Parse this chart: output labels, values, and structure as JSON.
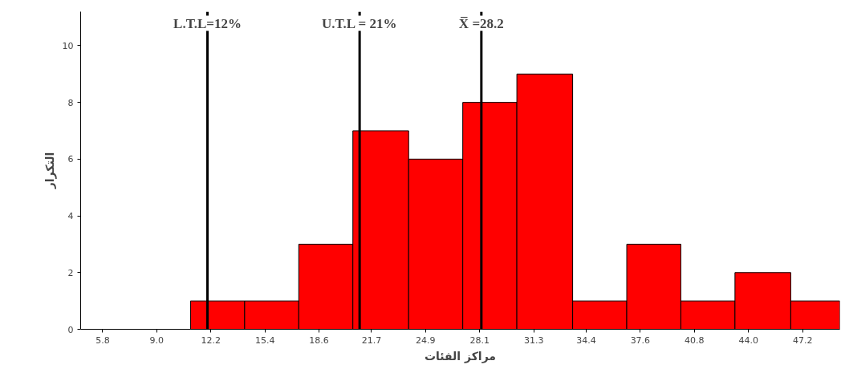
{
  "chart_data": {
    "type": "histogram",
    "xlabel": "مراكز الفئات",
    "ylabel": "التكرار",
    "bins": [
      11.0,
      14.2,
      17.4,
      20.6,
      23.9,
      27.1,
      30.3,
      33.6,
      36.8,
      40.0,
      43.2,
      46.5,
      49.4
    ],
    "values": [
      1,
      1,
      3,
      7,
      6,
      8,
      9,
      1,
      3,
      1,
      2,
      1
    ],
    "color": "#ff0000",
    "xlim": [
      4.5,
      49.4
    ],
    "xticks": [
      {
        "value": 5.8,
        "label": "5.8"
      },
      {
        "value": 9.0,
        "label": "9.0"
      },
      {
        "value": 12.2,
        "label": "12.2"
      },
      {
        "value": 15.4,
        "label": "15.4"
      },
      {
        "value": 18.6,
        "label": "18.6"
      },
      {
        "value": 21.7,
        "label": "21.7"
      },
      {
        "value": 24.9,
        "label": "24.9"
      },
      {
        "value": 28.1,
        "label": "28.1"
      },
      {
        "value": 31.3,
        "label": "31.3"
      },
      {
        "value": 34.4,
        "label": "34.4"
      },
      {
        "value": 37.6,
        "label": "37.6"
      },
      {
        "value": 40.8,
        "label": "40.8"
      },
      {
        "value": 44.0,
        "label": "44.0"
      },
      {
        "value": 47.2,
        "label": "47.2"
      }
    ],
    "ylim": [
      0,
      11.2
    ],
    "yticks": [
      0,
      2,
      4,
      6,
      8,
      10
    ],
    "grid": false,
    "ref_lines": [
      {
        "axis": "x",
        "value": 12,
        "label": "L.T.L=12%",
        "color": "#000000"
      },
      {
        "axis": "x",
        "value": 21,
        "label": "U.T.L = 21%",
        "color": "#000000"
      },
      {
        "axis": "x",
        "value": 28.2,
        "label": "X̅ =28.2",
        "color": "#000000"
      }
    ]
  }
}
